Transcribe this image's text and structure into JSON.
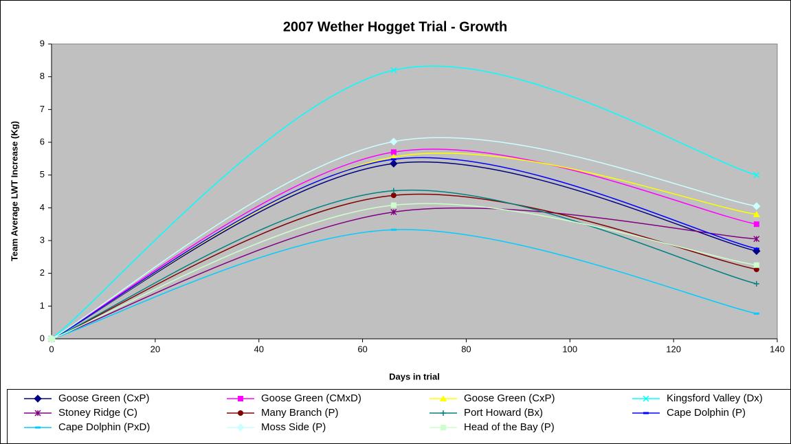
{
  "chart_data": {
    "type": "line",
    "title": "2007 Wether Hogget Trial - Growth",
    "x_label": "Days in trial",
    "y_label": "Team Average LWT Increase (Kg)",
    "x": [
      0,
      66,
      136
    ],
    "xlim": [
      0,
      140
    ],
    "xticks": [
      0,
      20,
      40,
      60,
      80,
      100,
      120,
      140
    ],
    "ylim": [
      0,
      9
    ],
    "yticks": [
      0,
      1,
      2,
      3,
      4,
      5,
      6,
      7,
      8,
      9
    ],
    "grid": false,
    "smooth": true,
    "plot_background": "#c0c0c0",
    "legend_position": "bottom",
    "series": [
      {
        "name": "Goose Green (CxP)",
        "color": "#000080",
        "marker": "diamond",
        "values": [
          0,
          5.35,
          2.68
        ]
      },
      {
        "name": "Goose Green (CMxD)",
        "color": "#ff00ff",
        "marker": "square",
        "values": [
          0,
          5.7,
          3.5
        ]
      },
      {
        "name": "Goose Green (CxP)",
        "color": "#ffff00",
        "marker": "triangle",
        "values": [
          0,
          5.55,
          3.8
        ]
      },
      {
        "name": "Kingsford Valley (Dx)",
        "color": "#00ffff",
        "marker": "x",
        "values": [
          0,
          8.2,
          5.0
        ]
      },
      {
        "name": "Stoney Ridge (C)",
        "color": "#800080",
        "marker": "star",
        "values": [
          0,
          3.87,
          3.05
        ]
      },
      {
        "name": "Many Branch (P)",
        "color": "#800000",
        "marker": "circle",
        "values": [
          0,
          4.38,
          2.12
        ]
      },
      {
        "name": "Port Howard (Bx)",
        "color": "#008080",
        "marker": "plus",
        "values": [
          0,
          4.52,
          1.68
        ]
      },
      {
        "name": "Cape Dolphin (P)",
        "color": "#0000ff",
        "marker": "dash",
        "values": [
          0,
          5.48,
          2.75
        ]
      },
      {
        "name": "Cape Dolphin (PxD)",
        "color": "#00ccff",
        "marker": "dash",
        "values": [
          0,
          3.33,
          0.77
        ]
      },
      {
        "name": "Moss Side (P)",
        "color": "#ccffff",
        "marker": "diamond",
        "values": [
          0,
          6.02,
          4.05
        ]
      },
      {
        "name": "Head of the Bay (P)",
        "color": "#ccffcc",
        "marker": "square",
        "values": [
          0,
          4.08,
          2.25
        ]
      }
    ]
  }
}
